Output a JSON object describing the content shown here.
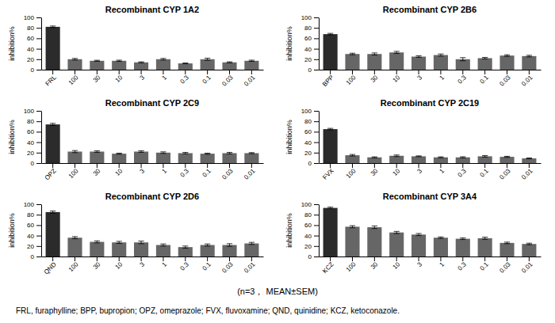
{
  "chart_data": [
    {
      "type": "bar",
      "title": "Recombinant CYP 1A2",
      "ylabel": "inhibition%",
      "categories": [
        "FRL",
        "100",
        "30",
        "10",
        "3",
        "1",
        "0.3",
        "0.1",
        "0.03",
        "0.01"
      ],
      "values": [
        82,
        20,
        17,
        17,
        14,
        20,
        12,
        20,
        14,
        17
      ],
      "errors": [
        1.5,
        1.5,
        1.0,
        1.2,
        1.0,
        1.5,
        0.8,
        2.0,
        1.0,
        1.2
      ],
      "colors": [
        "#2b2b2b",
        "#666666",
        "#666666",
        "#666666",
        "#666666",
        "#666666",
        "#666666",
        "#666666",
        "#666666",
        "#666666"
      ],
      "ylim": [
        0,
        100
      ],
      "yticks": [
        0,
        20,
        40,
        60,
        80,
        100
      ],
      "grid": false
    },
    {
      "type": "bar",
      "title": "Recombinant CYP 2B6",
      "ylabel": "inhibition%",
      "categories": [
        "BPP",
        "100",
        "30",
        "10",
        "3",
        "1",
        "0.3",
        "0.1",
        "0.03",
        "0.01"
      ],
      "values": [
        68,
        30,
        30,
        33,
        25,
        28,
        20,
        22,
        27,
        26
      ],
      "errors": [
        1.5,
        1.5,
        2.0,
        2.0,
        1.5,
        2.0,
        3.0,
        1.5,
        1.5,
        1.5
      ],
      "colors": [
        "#2b2b2b",
        "#666666",
        "#666666",
        "#666666",
        "#666666",
        "#666666",
        "#666666",
        "#666666",
        "#666666",
        "#666666"
      ],
      "ylim": [
        0,
        100
      ],
      "yticks": [
        0,
        20,
        40,
        60,
        80,
        100
      ],
      "grid": false
    },
    {
      "type": "bar",
      "title": "Recombinant CYP 2C9",
      "ylabel": "inhibition%",
      "categories": [
        "OPZ",
        "100",
        "30",
        "10",
        "3",
        "1",
        "0.3",
        "0.1",
        "0.03",
        "0.01"
      ],
      "values": [
        74,
        22,
        22,
        18,
        22,
        20,
        19,
        18,
        19,
        19
      ],
      "errors": [
        2.0,
        2.0,
        1.5,
        1.0,
        1.5,
        1.5,
        1.5,
        1.0,
        1.5,
        1.0
      ],
      "colors": [
        "#2b2b2b",
        "#666666",
        "#666666",
        "#666666",
        "#666666",
        "#666666",
        "#666666",
        "#666666",
        "#666666",
        "#666666"
      ],
      "ylim": [
        0,
        100
      ],
      "yticks": [
        0,
        20,
        40,
        60,
        80,
        100
      ],
      "grid": false
    },
    {
      "type": "bar",
      "title": "Recombinant CYP 2C19",
      "ylabel": "inhibition%",
      "categories": [
        "FVX",
        "100",
        "30",
        "10",
        "3",
        "1",
        "0.3",
        "0.1",
        "0.03",
        "0.01"
      ],
      "values": [
        65,
        15,
        11,
        14,
        13,
        11,
        11,
        13,
        12,
        9
      ],
      "errors": [
        1.5,
        1.5,
        1.0,
        1.5,
        0.8,
        1.0,
        1.2,
        1.5,
        1.0,
        0.8
      ],
      "colors": [
        "#2b2b2b",
        "#666666",
        "#666666",
        "#666666",
        "#666666",
        "#666666",
        "#666666",
        "#666666",
        "#666666",
        "#666666"
      ],
      "ylim": [
        0,
        100
      ],
      "yticks": [
        0,
        20,
        40,
        60,
        80,
        100
      ],
      "grid": false
    },
    {
      "type": "bar",
      "title": "Recombinant CYP 2D6",
      "ylabel": "inhibition%",
      "categories": [
        "QND",
        "100",
        "30",
        "10",
        "3",
        "1",
        "0.3",
        "0.1",
        "0.03",
        "0.01"
      ],
      "values": [
        85,
        36,
        28,
        27,
        27,
        22,
        18,
        22,
        22,
        25
      ],
      "errors": [
        2.0,
        2.0,
        2.0,
        2.0,
        2.5,
        2.0,
        2.0,
        2.0,
        2.5,
        2.0
      ],
      "colors": [
        "#2b2b2b",
        "#666666",
        "#666666",
        "#666666",
        "#666666",
        "#666666",
        "#666666",
        "#666666",
        "#666666",
        "#666666"
      ],
      "ylim": [
        0,
        100
      ],
      "yticks": [
        0,
        20,
        40,
        60,
        80,
        100
      ],
      "grid": false
    },
    {
      "type": "bar",
      "title": "Recombinant CYP 3A4",
      "ylabel": "inhibition%",
      "categories": [
        "KCZ",
        "100",
        "30",
        "10",
        "3",
        "1",
        "0.3",
        "0.1",
        "0.03",
        "0.01"
      ],
      "values": [
        93,
        57,
        56,
        46,
        42,
        36,
        34,
        35,
        26,
        24
      ],
      "errors": [
        1.5,
        2.0,
        2.5,
        2.0,
        2.0,
        1.5,
        1.5,
        2.0,
        1.5,
        1.5
      ],
      "colors": [
        "#2b2b2b",
        "#666666",
        "#666666",
        "#666666",
        "#666666",
        "#666666",
        "#666666",
        "#666666",
        "#666666",
        "#666666"
      ],
      "ylim": [
        0,
        100
      ],
      "yticks": [
        0,
        20,
        40,
        60,
        80,
        100
      ],
      "grid": false
    }
  ],
  "annotations": [
    "(n=3， MEAN±SEM)",
    "FRL, furaphylline; BPP, bupropion; OPZ, omeprazole; FVX, fluvoxamine; QND, quinidine; KCZ, ketoconazole."
  ]
}
